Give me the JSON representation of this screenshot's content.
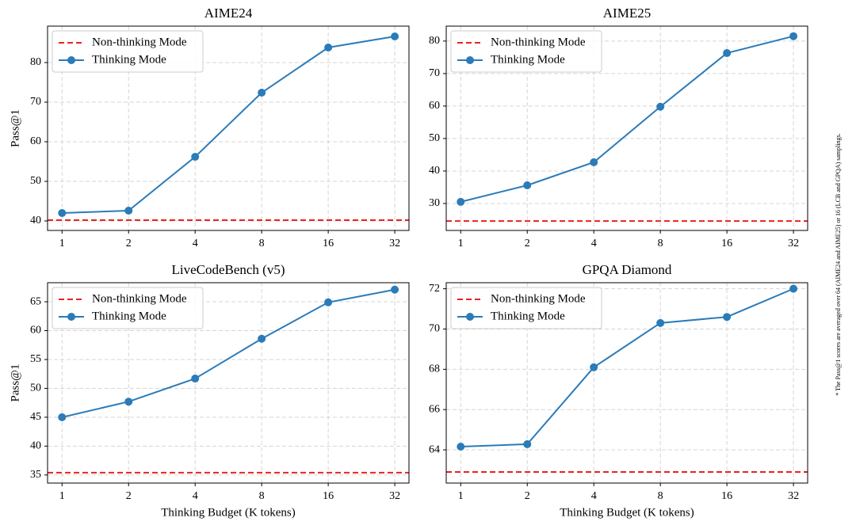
{
  "chart_data": [
    {
      "type": "line",
      "title": "AIME24",
      "ylabel": "Pass@1",
      "x": [
        1,
        2,
        4,
        8,
        16,
        32
      ],
      "xscale": "log",
      "xlim": [
        0.86,
        37.1
      ],
      "xticks": [
        1,
        2,
        4,
        8,
        16,
        32
      ],
      "ylim": [
        37.6,
        89.2
      ],
      "yticks": [
        40,
        50,
        60,
        70,
        80
      ],
      "grid": true,
      "legend": "upper left",
      "series": [
        {
          "name": "Non-thinking Mode",
          "color": "#e8231e",
          "style": "dashed",
          "value": 40.2
        },
        {
          "name": "Thinking Mode",
          "color": "#2b7bb9",
          "values": [
            42.0,
            42.6,
            56.2,
            72.4,
            83.8,
            86.6
          ]
        }
      ]
    },
    {
      "type": "line",
      "title": "AIME25",
      "x": [
        1,
        2,
        4,
        8,
        16,
        32
      ],
      "xscale": "log",
      "xlim": [
        0.86,
        37.1
      ],
      "xticks": [
        1,
        2,
        4,
        8,
        16,
        32
      ],
      "ylim": [
        21.7,
        84.6
      ],
      "yticks": [
        30,
        40,
        50,
        60,
        70,
        80
      ],
      "grid": true,
      "legend": "upper left",
      "series": [
        {
          "name": "Non-thinking Mode",
          "color": "#e8231e",
          "style": "dashed",
          "value": 24.6
        },
        {
          "name": "Thinking Mode",
          "color": "#2b7bb9",
          "values": [
            30.5,
            35.6,
            42.7,
            59.8,
            76.3,
            81.5
          ]
        }
      ]
    },
    {
      "type": "line",
      "title": "LiveCodeBench (v5)",
      "ylabel": "Pass@1",
      "xlabel": "Thinking Budget (K tokens)",
      "x": [
        1,
        2,
        4,
        8,
        16,
        32
      ],
      "xscale": "log",
      "xlim": [
        0.86,
        37.1
      ],
      "xticks": [
        1,
        2,
        4,
        8,
        16,
        32
      ],
      "ylim": [
        33.6,
        68.3
      ],
      "yticks": [
        35,
        40,
        45,
        50,
        55,
        60,
        65
      ],
      "grid": true,
      "legend": "upper left",
      "series": [
        {
          "name": "Non-thinking Mode",
          "color": "#e8231e",
          "style": "dashed",
          "value": 35.4
        },
        {
          "name": "Thinking Mode",
          "color": "#2b7bb9",
          "values": [
            45.0,
            47.7,
            51.7,
            58.6,
            64.9,
            67.1
          ]
        }
      ]
    },
    {
      "type": "line",
      "title": "GPQA Diamond",
      "xlabel": "Thinking Budget (K tokens)",
      "x": [
        1,
        2,
        4,
        8,
        16,
        32
      ],
      "xscale": "log",
      "xlim": [
        0.86,
        37.1
      ],
      "xticks": [
        1,
        2,
        4,
        8,
        16,
        32
      ],
      "ylim": [
        62.35,
        72.3
      ],
      "yticks": [
        64,
        66,
        68,
        70,
        72
      ],
      "grid": true,
      "legend": "upper left",
      "series": [
        {
          "name": "Non-thinking Mode",
          "color": "#e8231e",
          "style": "dashed",
          "value": 62.9
        },
        {
          "name": "Thinking Mode",
          "color": "#2b7bb9",
          "values": [
            64.16,
            64.28,
            68.1,
            70.3,
            70.6,
            72.0
          ]
        }
      ]
    }
  ],
  "note": "* The Pass@1 scores are averaged over 64 (AIME24 and AIME25) or 16 (LCB and GPQA) samplings."
}
